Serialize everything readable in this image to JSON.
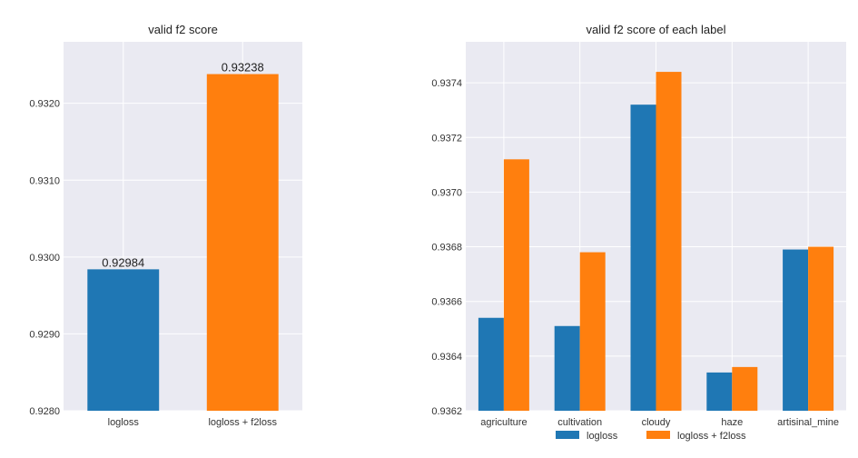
{
  "chart_data": [
    {
      "type": "bar",
      "title": "valid f2 score",
      "xlabel": "",
      "ylabel": "",
      "categories": [
        "logloss",
        "logloss + f2loss"
      ],
      "values": [
        0.92984,
        0.93238
      ],
      "data_labels": [
        "0.92984",
        "0.93238"
      ],
      "colors": [
        "#1f77b4",
        "#ff7f0e"
      ],
      "ylim": [
        0.928,
        0.9328
      ],
      "yticks": [
        0.928,
        0.929,
        0.93,
        0.931,
        0.932
      ],
      "ytick_labels": [
        "0.9280",
        "0.9290",
        "0.9300",
        "0.9310",
        "0.9320"
      ],
      "grid": true
    },
    {
      "type": "bar",
      "title": "valid f2 score of each label",
      "xlabel": "",
      "ylabel": "",
      "categories": [
        "agriculture",
        "cultivation",
        "cloudy",
        "haze",
        "artisinal_mine"
      ],
      "series": [
        {
          "name": "logloss",
          "color": "#1f77b4",
          "values": [
            0.93654,
            0.93651,
            0.93732,
            0.93634,
            0.93679
          ]
        },
        {
          "name": "logloss + f2loss",
          "color": "#ff7f0e",
          "values": [
            0.93712,
            0.93678,
            0.93744,
            0.93636,
            0.9368
          ]
        }
      ],
      "ylim": [
        0.9362,
        0.93755
      ],
      "yticks": [
        0.9362,
        0.9364,
        0.9366,
        0.9368,
        0.937,
        0.9372,
        0.9374
      ],
      "ytick_labels": [
        "0.9362",
        "0.9364",
        "0.9366",
        "0.9368",
        "0.9370",
        "0.9372",
        "0.9374"
      ],
      "grid": true,
      "legend": "bottom-center"
    }
  ]
}
